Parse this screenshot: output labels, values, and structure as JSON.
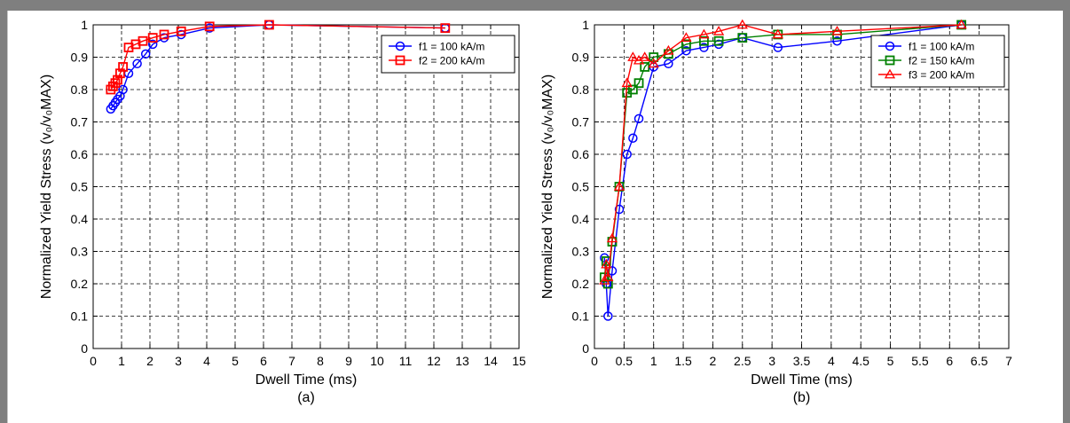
{
  "chart_data": [
    {
      "type": "line",
      "panel_label": "(a)",
      "xlabel": "Dwell Time (ms)",
      "ylabel": "Normalized Yield Stress (v₀/v₀MAX)",
      "xlim": [
        0,
        15
      ],
      "ylim": [
        0,
        1
      ],
      "xticks": [
        0,
        1,
        2,
        3,
        4,
        5,
        6,
        7,
        8,
        9,
        10,
        11,
        12,
        13,
        14,
        15
      ],
      "yticks": [
        0,
        0.1,
        0.2,
        0.3,
        0.4,
        0.5,
        0.6,
        0.7,
        0.8,
        0.9,
        1
      ],
      "xtick_labels": [
        "0",
        "1",
        "2",
        "3",
        "4",
        "5",
        "6",
        "7",
        "8",
        "9",
        "10",
        "11",
        "12",
        "13",
        "14",
        "15"
      ],
      "ytick_labels": [
        "0",
        "0.1",
        "0.2",
        "0.3",
        "0.4",
        "0.5",
        "0.6",
        "0.7",
        "0.8",
        "0.9",
        "1"
      ],
      "grid": true,
      "legend_position": "top-right",
      "series": [
        {
          "name": "f1 = 100 kA/m",
          "color": "#0000ff",
          "marker": "circle",
          "x": [
            0.62,
            0.7,
            0.78,
            0.86,
            0.95,
            1.05,
            1.25,
            1.55,
            1.85,
            2.1,
            2.5,
            3.1,
            4.1,
            6.2,
            12.4
          ],
          "y": [
            0.74,
            0.75,
            0.76,
            0.77,
            0.78,
            0.8,
            0.85,
            0.88,
            0.91,
            0.94,
            0.96,
            0.97,
            0.99,
            1.0,
            0.99
          ]
        },
        {
          "name": "f2 = 200 kA/m",
          "color": "#ff0000",
          "marker": "square",
          "x": [
            0.62,
            0.7,
            0.78,
            0.86,
            0.95,
            1.05,
            1.25,
            1.5,
            1.75,
            2.1,
            2.5,
            3.1,
            4.1,
            6.2,
            12.4
          ],
          "y": [
            0.8,
            0.81,
            0.82,
            0.83,
            0.85,
            0.87,
            0.93,
            0.94,
            0.95,
            0.96,
            0.97,
            0.98,
            0.995,
            1.0,
            0.99
          ]
        }
      ]
    },
    {
      "type": "line",
      "panel_label": "(b)",
      "xlabel": "Dwell Time (ms)",
      "ylabel": "Normalized Yield Stress (v₀/v₀MAX)",
      "xlim": [
        0,
        7
      ],
      "ylim": [
        0,
        1
      ],
      "xticks": [
        0,
        0.5,
        1,
        1.5,
        2,
        2.5,
        3,
        3.5,
        4,
        4.5,
        5,
        5.5,
        6,
        6.5,
        7
      ],
      "yticks": [
        0,
        0.1,
        0.2,
        0.3,
        0.4,
        0.5,
        0.6,
        0.7,
        0.8,
        0.9,
        1
      ],
      "xtick_labels": [
        "0",
        "0.5",
        "1",
        "1.5",
        "2",
        "2.5",
        "3",
        "3.5",
        "4",
        "4.5",
        "5",
        "5.5",
        "6",
        "6.5",
        "7"
      ],
      "ytick_labels": [
        "0",
        "0.1",
        "0.2",
        "0.3",
        "0.4",
        "0.5",
        "0.6",
        "0.7",
        "0.8",
        "0.9",
        "1"
      ],
      "grid": true,
      "legend_position": "top-right",
      "series": [
        {
          "name": "f1 = 100 kA/m",
          "color": "#0000ff",
          "marker": "circle",
          "x": [
            0.17,
            0.2,
            0.23,
            0.3,
            0.42,
            0.55,
            0.65,
            0.75,
            1.0,
            1.25,
            1.55,
            1.85,
            2.1,
            2.5,
            3.1,
            4.1,
            6.2
          ],
          "y": [
            0.28,
            0.2,
            0.1,
            0.24,
            0.43,
            0.6,
            0.65,
            0.71,
            0.87,
            0.88,
            0.92,
            0.93,
            0.94,
            0.96,
            0.93,
            0.95,
            1.0
          ]
        },
        {
          "name": "f2 = 150 kA/m",
          "color": "#008000",
          "marker": "square",
          "x": [
            0.17,
            0.2,
            0.23,
            0.3,
            0.42,
            0.55,
            0.65,
            0.75,
            0.85,
            1.0,
            1.25,
            1.55,
            1.85,
            2.1,
            2.5,
            3.1,
            4.1,
            6.2
          ],
          "y": [
            0.22,
            0.27,
            0.2,
            0.33,
            0.5,
            0.79,
            0.8,
            0.82,
            0.87,
            0.9,
            0.91,
            0.94,
            0.95,
            0.95,
            0.96,
            0.97,
            0.97,
            1.0
          ]
        },
        {
          "name": "f3 = 200 kA/m",
          "color": "#ff0000",
          "marker": "triangle",
          "x": [
            0.17,
            0.2,
            0.23,
            0.3,
            0.42,
            0.55,
            0.65,
            0.75,
            0.85,
            1.0,
            1.25,
            1.55,
            1.85,
            2.1,
            2.5,
            3.1,
            4.1,
            6.2
          ],
          "y": [
            0.21,
            0.26,
            0.22,
            0.34,
            0.5,
            0.82,
            0.9,
            0.89,
            0.9,
            0.88,
            0.92,
            0.96,
            0.97,
            0.98,
            1.0,
            0.97,
            0.98,
            1.0
          ]
        }
      ]
    }
  ]
}
